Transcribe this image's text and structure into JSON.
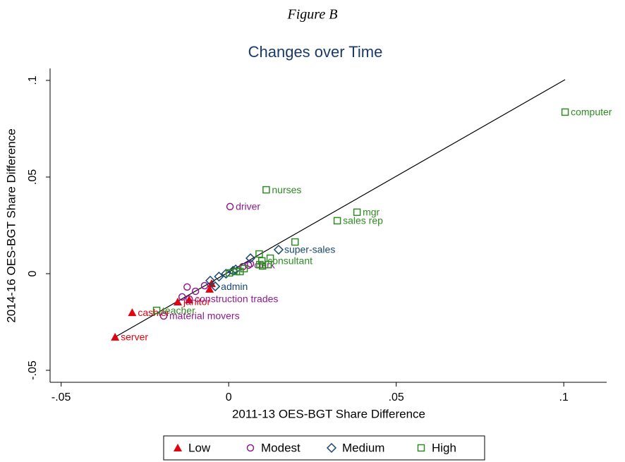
{
  "chart_data": {
    "type": "scatter",
    "figure_label": "Figure B",
    "title": "Changes over Time",
    "x_label": "2011-13 OES-BGT Share Difference",
    "y_label": "2014-16 OES-BGT Share Difference",
    "xlim": [
      -0.0533,
      0.1128
    ],
    "ylim": [
      -0.0562,
      0.1062
    ],
    "xticks": [
      {
        "value": -0.05,
        "label": "-.05"
      },
      0,
      {
        "value": 0.05,
        "label": ".05"
      },
      {
        "value": 0.1,
        "label": ".1"
      }
    ],
    "yticks": [
      {
        "value": -0.05,
        "label": "-.05"
      },
      0,
      {
        "value": 0.05,
        "label": ".05"
      },
      {
        "value": 0.1,
        "label": ".1"
      }
    ],
    "reference_line": {
      "x": [
        -0.0339,
        0.1004
      ],
      "y": [
        -0.0328,
        0.1004
      ],
      "color": "#000000"
    },
    "legend_position": "bottom",
    "series": [
      {
        "name": "Low",
        "marker": "triangle",
        "color": "#e3000f",
        "x": [
          -0.0339,
          -0.0288,
          -0.0152,
          -0.0118,
          -0.0057,
          -0.0051
        ],
        "values": [
          -0.0328,
          -0.0201,
          -0.0146,
          -0.0135,
          -0.008,
          -0.0051
        ],
        "labels": [
          "server",
          "cashier",
          "janitor",
          null,
          null,
          null
        ]
      },
      {
        "name": "Modest",
        "marker": "circle",
        "color": "#8e1b8e",
        "x": [
          0.0004,
          -0.0194,
          -0.0118,
          -0.0124,
          -0.0139,
          -0.0099,
          -0.0072,
          0.0042,
          0.0059,
          0.0065
        ],
        "values": [
          0.0347,
          -0.0219,
          -0.0131,
          -0.0069,
          -0.012,
          -0.0091,
          -0.0062,
          0.0036,
          0.0044,
          0.0051
        ],
        "labels": [
          "driver",
          "material movers",
          "construction trades",
          null,
          null,
          null,
          null,
          null,
          "clerk",
          null
        ]
      },
      {
        "name": "Medium",
        "marker": "diamond",
        "color": "#1a476f",
        "x": [
          0.0149,
          -0.004,
          -0.0055,
          -0.0029,
          -0.0008,
          0.0013,
          0.0065,
          0.0021
        ],
        "values": [
          0.0124,
          -0.0066,
          -0.0036,
          -0.0015,
          0.0,
          0.0015,
          0.008,
          0.0022
        ],
        "labels": [
          "super-sales",
          "admin",
          null,
          null,
          null,
          null,
          null,
          null
        ]
      },
      {
        "name": "High",
        "marker": "square",
        "color": "#2e8b22",
        "x": [
          0.1004,
          0.0112,
          0.0383,
          0.0324,
          -0.0215,
          0.0099,
          0.0198,
          0.0124,
          0.0091,
          0.0101,
          0.0046,
          0.0023,
          0.0002,
          0.0034,
          0.0093,
          0.0118
        ],
        "values": [
          0.0836,
          0.0434,
          0.0318,
          0.0274,
          -0.019,
          0.0066,
          0.0164,
          0.008,
          0.0102,
          0.004,
          0.0026,
          0.0011,
          0.0004,
          0.0011,
          0.0047,
          0.0047
        ],
        "labels": [
          "computer",
          "nurses",
          "mgr",
          "sales rep",
          "teacher",
          "consultant",
          null,
          null,
          null,
          null,
          null,
          null,
          null,
          null,
          null,
          null
        ]
      }
    ]
  }
}
